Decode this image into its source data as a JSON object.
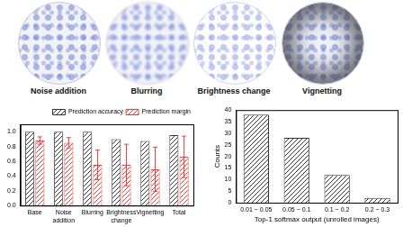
{
  "images": [
    {
      "label": "Noise addition"
    },
    {
      "label": "Blurring"
    },
    {
      "label": "Brightness change"
    },
    {
      "label": "Vignetting"
    }
  ],
  "chart_data": [
    {
      "type": "bar",
      "categories": [
        "Base",
        "Noise addition",
        "Blurring",
        "Brightness change",
        "Vignetting",
        "Total"
      ],
      "series": [
        {
          "name": "Prediction accuracy",
          "color": "#333333",
          "values": [
            1.0,
            1.0,
            1.0,
            0.9,
            0.875,
            0.955
          ]
        },
        {
          "name": "Prediction margin",
          "color": "#e8413c",
          "values": [
            0.88,
            0.85,
            0.55,
            0.55,
            0.49,
            0.66
          ],
          "errors": [
            0.05,
            0.07,
            0.2,
            0.28,
            0.3,
            0.28
          ]
        }
      ],
      "ylim": [
        0,
        1.1
      ],
      "yticks": [
        {
          "value": 0,
          "label": "0.0"
        },
        {
          "value": 0.2,
          "label": "0.2"
        },
        {
          "value": 0.4,
          "label": "0.4"
        },
        {
          "value": 0.6,
          "label": "0.6"
        },
        {
          "value": 0.8,
          "label": "0.8"
        },
        {
          "value": 1.0,
          "label": "1.0"
        }
      ],
      "grid": false,
      "legend": "upper right"
    },
    {
      "type": "bar",
      "xlabel": "Top-1 softmax output (unrolled images)",
      "ylabel": "Counts",
      "categories": [
        "0.01 ~ 0.05",
        "0.05 ~ 0.1",
        "0.1 ~ 0.2",
        "0.2 ~ 0.3"
      ],
      "values": [
        38,
        28,
        12,
        2
      ],
      "color": "#333333",
      "ylim": [
        0,
        40
      ],
      "yticks": [
        0,
        5,
        10,
        15,
        20,
        25,
        30,
        35,
        40
      ],
      "grid": false
    }
  ]
}
